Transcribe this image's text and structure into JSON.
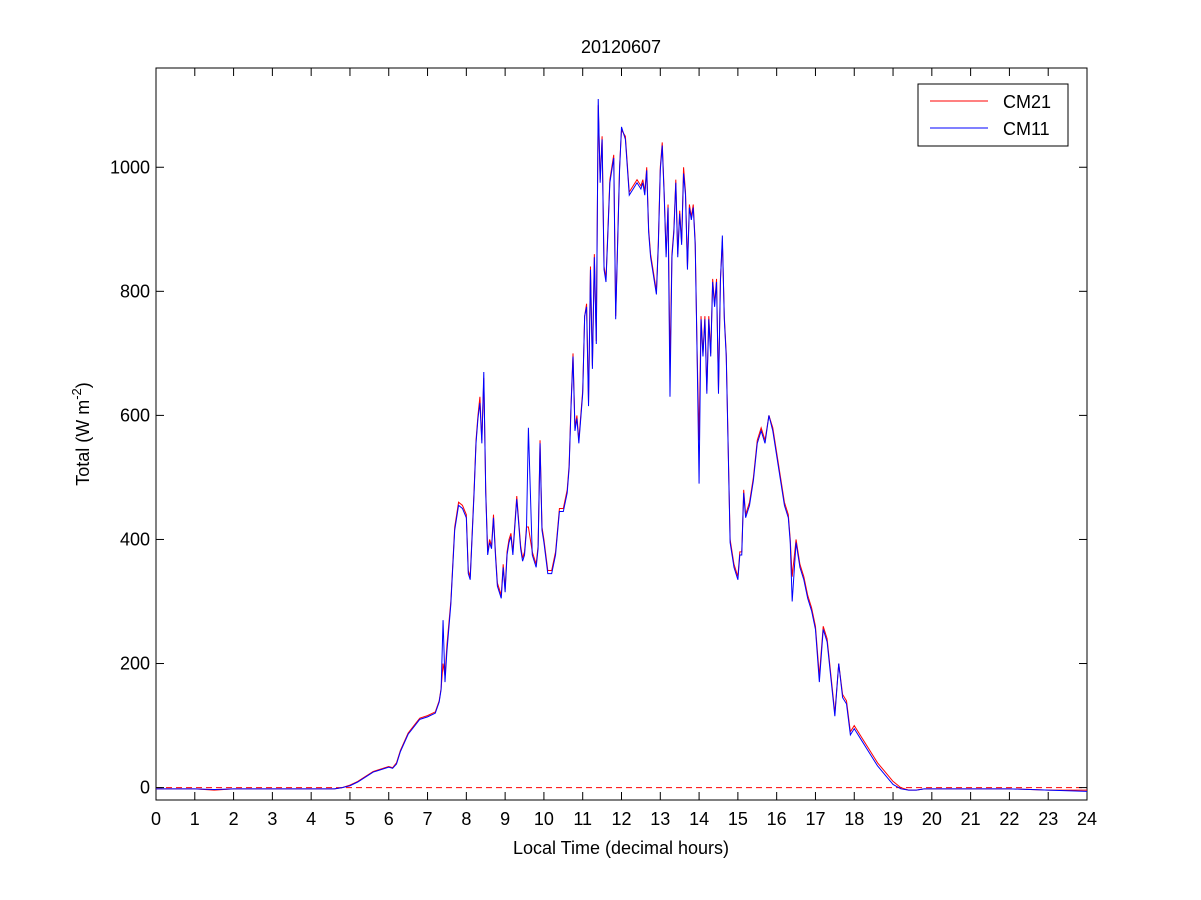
{
  "chart_data": {
    "type": "line",
    "title": "20120607",
    "xlabel": "Local Time (decimal hours)",
    "ylabel_main": "Total (W m",
    "ylabel_sup": "-2",
    "ylabel_close": ")",
    "xlim": [
      0,
      24
    ],
    "ylim": [
      -20,
      1160
    ],
    "xticks": [
      0,
      1,
      2,
      3,
      4,
      5,
      6,
      7,
      8,
      9,
      10,
      11,
      12,
      13,
      14,
      15,
      16,
      17,
      18,
      19,
      20,
      21,
      22,
      23,
      24
    ],
    "yticks": [
      0,
      200,
      400,
      600,
      800,
      1000
    ],
    "grid": false,
    "legend_position": "top-right",
    "colors": {
      "CM21": "#ff0000",
      "CM11": "#0000ff",
      "zero_line": "#ff0000"
    },
    "series": [
      {
        "name": "CM21",
        "x": [
          0,
          1,
          1.5,
          2,
          3,
          4,
          4.6,
          4.8,
          5,
          5.2,
          5.4,
          5.6,
          5.7,
          5.8,
          5.9,
          6,
          6.1,
          6.2,
          6.3,
          6.5,
          6.7,
          6.8,
          7,
          7.2,
          7.3,
          7.35,
          7.4,
          7.45,
          7.5,
          7.6,
          7.7,
          7.75,
          7.8,
          7.9,
          8,
          8.05,
          8.1,
          8.15,
          8.2,
          8.25,
          8.3,
          8.35,
          8.4,
          8.45,
          8.5,
          8.55,
          8.6,
          8.65,
          8.7,
          8.75,
          8.8,
          8.85,
          8.9,
          8.95,
          9,
          9.05,
          9.1,
          9.15,
          9.2,
          9.3,
          9.4,
          9.45,
          9.5,
          9.55,
          9.6,
          9.7,
          9.8,
          9.85,
          9.9,
          9.95,
          10,
          10.1,
          10.2,
          10.3,
          10.4,
          10.5,
          10.6,
          10.65,
          10.7,
          10.75,
          10.8,
          10.85,
          10.9,
          11,
          11.05,
          11.1,
          11.15,
          11.2,
          11.25,
          11.3,
          11.35,
          11.4,
          11.45,
          11.5,
          11.55,
          11.6,
          11.65,
          11.7,
          11.75,
          11.8,
          11.85,
          11.9,
          11.95,
          12,
          12.1,
          12.2,
          12.3,
          12.4,
          12.5,
          12.55,
          12.6,
          12.65,
          12.7,
          12.75,
          12.8,
          12.85,
          12.9,
          12.95,
          13,
          13.05,
          13.1,
          13.15,
          13.2,
          13.25,
          13.3,
          13.35,
          13.4,
          13.45,
          13.5,
          13.55,
          13.6,
          13.65,
          13.7,
          13.75,
          13.8,
          13.85,
          13.9,
          13.95,
          14,
          14.05,
          14.1,
          14.15,
          14.2,
          14.25,
          14.3,
          14.35,
          14.4,
          14.45,
          14.5,
          14.55,
          14.6,
          14.65,
          14.7,
          14.8,
          14.9,
          15,
          15.05,
          15.1,
          15.15,
          15.2,
          15.3,
          15.4,
          15.5,
          15.6,
          15.7,
          15.8,
          15.9,
          16,
          16.1,
          16.2,
          16.3,
          16.35,
          16.4,
          16.5,
          16.6,
          16.7,
          16.8,
          16.9,
          17,
          17.1,
          17.2,
          17.3,
          17.4,
          17.5,
          17.6,
          17.7,
          17.8,
          17.9,
          18,
          18.2,
          18.4,
          18.6,
          18.8,
          19,
          19.2,
          19.4,
          19.6,
          19.8,
          20,
          21,
          22,
          23,
          24
        ],
        "values": [
          -2,
          -2,
          -4,
          -2,
          -2,
          -2,
          -2,
          0,
          4,
          10,
          18,
          26,
          28,
          30,
          32,
          34,
          32,
          40,
          60,
          88,
          104,
          112,
          116,
          122,
          140,
          160,
          200,
          180,
          230,
          300,
          420,
          440,
          460,
          455,
          440,
          350,
          340,
          410,
          480,
          560,
          600,
          630,
          560,
          660,
          480,
          380,
          400,
          390,
          440,
          380,
          330,
          320,
          310,
          360,
          320,
          380,
          400,
          410,
          380,
          470,
          390,
          370,
          380,
          420,
          420,
          380,
          360,
          390,
          560,
          420,
          400,
          350,
          350,
          380,
          450,
          450,
          480,
          520,
          620,
          700,
          580,
          600,
          560,
          640,
          760,
          780,
          620,
          840,
          680,
          860,
          720,
          1100,
          980,
          1050,
          840,
          820,
          900,
          980,
          1000,
          1020,
          760,
          880,
          1000,
          1060,
          1050,
          960,
          970,
          980,
          970,
          980,
          960,
          1000,
          900,
          860,
          840,
          820,
          800,
          880,
          1000,
          1040,
          960,
          860,
          940,
          680,
          860,
          900,
          980,
          860,
          930,
          880,
          1000,
          960,
          840,
          940,
          920,
          940,
          880,
          700,
          560,
          760,
          700,
          760,
          640,
          760,
          700,
          820,
          780,
          820,
          640,
          820,
          880,
          760,
          700,
          400,
          360,
          340,
          380,
          380,
          480,
          440,
          460,
          500,
          560,
          580,
          560,
          600,
          580,
          540,
          500,
          460,
          440,
          400,
          340,
          400,
          360,
          340,
          310,
          290,
          260,
          180,
          260,
          240,
          180,
          120,
          200,
          150,
          140,
          90,
          100,
          80,
          60,
          40,
          25,
          10,
          0,
          -4,
          -4,
          -2,
          -2,
          -2,
          -2,
          -4,
          -4
        ]
      },
      {
        "name": "CM11",
        "x": [
          0,
          1,
          1.5,
          2,
          3,
          4,
          4.6,
          4.8,
          5,
          5.2,
          5.4,
          5.6,
          5.7,
          5.8,
          5.9,
          6,
          6.1,
          6.2,
          6.3,
          6.5,
          6.7,
          6.8,
          7,
          7.2,
          7.3,
          7.35,
          7.4,
          7.45,
          7.5,
          7.6,
          7.7,
          7.75,
          7.8,
          7.9,
          8,
          8.05,
          8.1,
          8.15,
          8.2,
          8.25,
          8.3,
          8.35,
          8.4,
          8.45,
          8.5,
          8.55,
          8.6,
          8.65,
          8.7,
          8.75,
          8.8,
          8.85,
          8.9,
          8.95,
          9,
          9.05,
          9.1,
          9.15,
          9.2,
          9.3,
          9.4,
          9.45,
          9.5,
          9.55,
          9.6,
          9.7,
          9.8,
          9.85,
          9.9,
          9.95,
          10,
          10.1,
          10.2,
          10.3,
          10.4,
          10.5,
          10.6,
          10.65,
          10.7,
          10.75,
          10.8,
          10.85,
          10.9,
          11,
          11.05,
          11.1,
          11.15,
          11.2,
          11.25,
          11.3,
          11.35,
          11.4,
          11.45,
          11.5,
          11.55,
          11.6,
          11.65,
          11.7,
          11.75,
          11.8,
          11.85,
          11.9,
          11.95,
          12,
          12.1,
          12.2,
          12.3,
          12.4,
          12.5,
          12.55,
          12.6,
          12.65,
          12.7,
          12.75,
          12.8,
          12.85,
          12.9,
          12.95,
          13,
          13.05,
          13.1,
          13.15,
          13.2,
          13.25,
          13.3,
          13.35,
          13.4,
          13.45,
          13.5,
          13.55,
          13.6,
          13.65,
          13.7,
          13.75,
          13.8,
          13.85,
          13.9,
          13.95,
          14,
          14.05,
          14.1,
          14.15,
          14.2,
          14.25,
          14.3,
          14.35,
          14.4,
          14.45,
          14.5,
          14.55,
          14.6,
          14.65,
          14.7,
          14.8,
          14.9,
          15,
          15.05,
          15.1,
          15.15,
          15.2,
          15.3,
          15.4,
          15.5,
          15.6,
          15.7,
          15.8,
          15.9,
          16,
          16.1,
          16.2,
          16.3,
          16.35,
          16.4,
          16.5,
          16.6,
          16.7,
          16.8,
          16.9,
          17,
          17.1,
          17.2,
          17.3,
          17.4,
          17.5,
          17.6,
          17.7,
          17.8,
          17.9,
          18,
          18.2,
          18.4,
          18.6,
          18.8,
          19,
          19.2,
          19.4,
          19.6,
          19.8,
          20,
          21,
          22,
          23,
          24
        ],
        "values": [
          -2,
          -2,
          -3,
          -2,
          -2,
          -2,
          -2,
          0,
          3,
          9,
          17,
          25,
          27,
          29,
          31,
          33,
          31,
          38,
          58,
          86,
          102,
          110,
          114,
          120,
          138,
          158,
          270,
          170,
          220,
          295,
          415,
          435,
          455,
          450,
          435,
          345,
          335,
          405,
          475,
          555,
          595,
          620,
          555,
          670,
          475,
          375,
          395,
          385,
          435,
          375,
          325,
          315,
          305,
          355,
          315,
          375,
          395,
          405,
          375,
          465,
          385,
          365,
          375,
          415,
          580,
          375,
          355,
          385,
          555,
          415,
          395,
          345,
          345,
          375,
          445,
          445,
          475,
          515,
          615,
          695,
          575,
          595,
          555,
          635,
          760,
          775,
          615,
          835,
          675,
          855,
          715,
          1110,
          975,
          1045,
          835,
          815,
          895,
          975,
          995,
          1015,
          755,
          875,
          995,
          1065,
          1045,
          955,
          965,
          975,
          965,
          975,
          955,
          995,
          895,
          855,
          835,
          815,
          795,
          875,
          995,
          1035,
          955,
          855,
          935,
          630,
          855,
          895,
          975,
          855,
          925,
          875,
          990,
          955,
          835,
          935,
          915,
          935,
          875,
          695,
          490,
          755,
          695,
          755,
          635,
          755,
          695,
          815,
          775,
          815,
          635,
          815,
          890,
          755,
          695,
          395,
          355,
          335,
          375,
          375,
          475,
          435,
          455,
          495,
          555,
          575,
          555,
          600,
          575,
          535,
          495,
          455,
          435,
          395,
          300,
          395,
          355,
          335,
          305,
          285,
          255,
          170,
          255,
          235,
          175,
          115,
          200,
          145,
          135,
          85,
          95,
          75,
          55,
          35,
          20,
          5,
          -2,
          -4,
          -4,
          -2,
          -2,
          -2,
          -2,
          -4,
          -6
        ]
      }
    ]
  }
}
